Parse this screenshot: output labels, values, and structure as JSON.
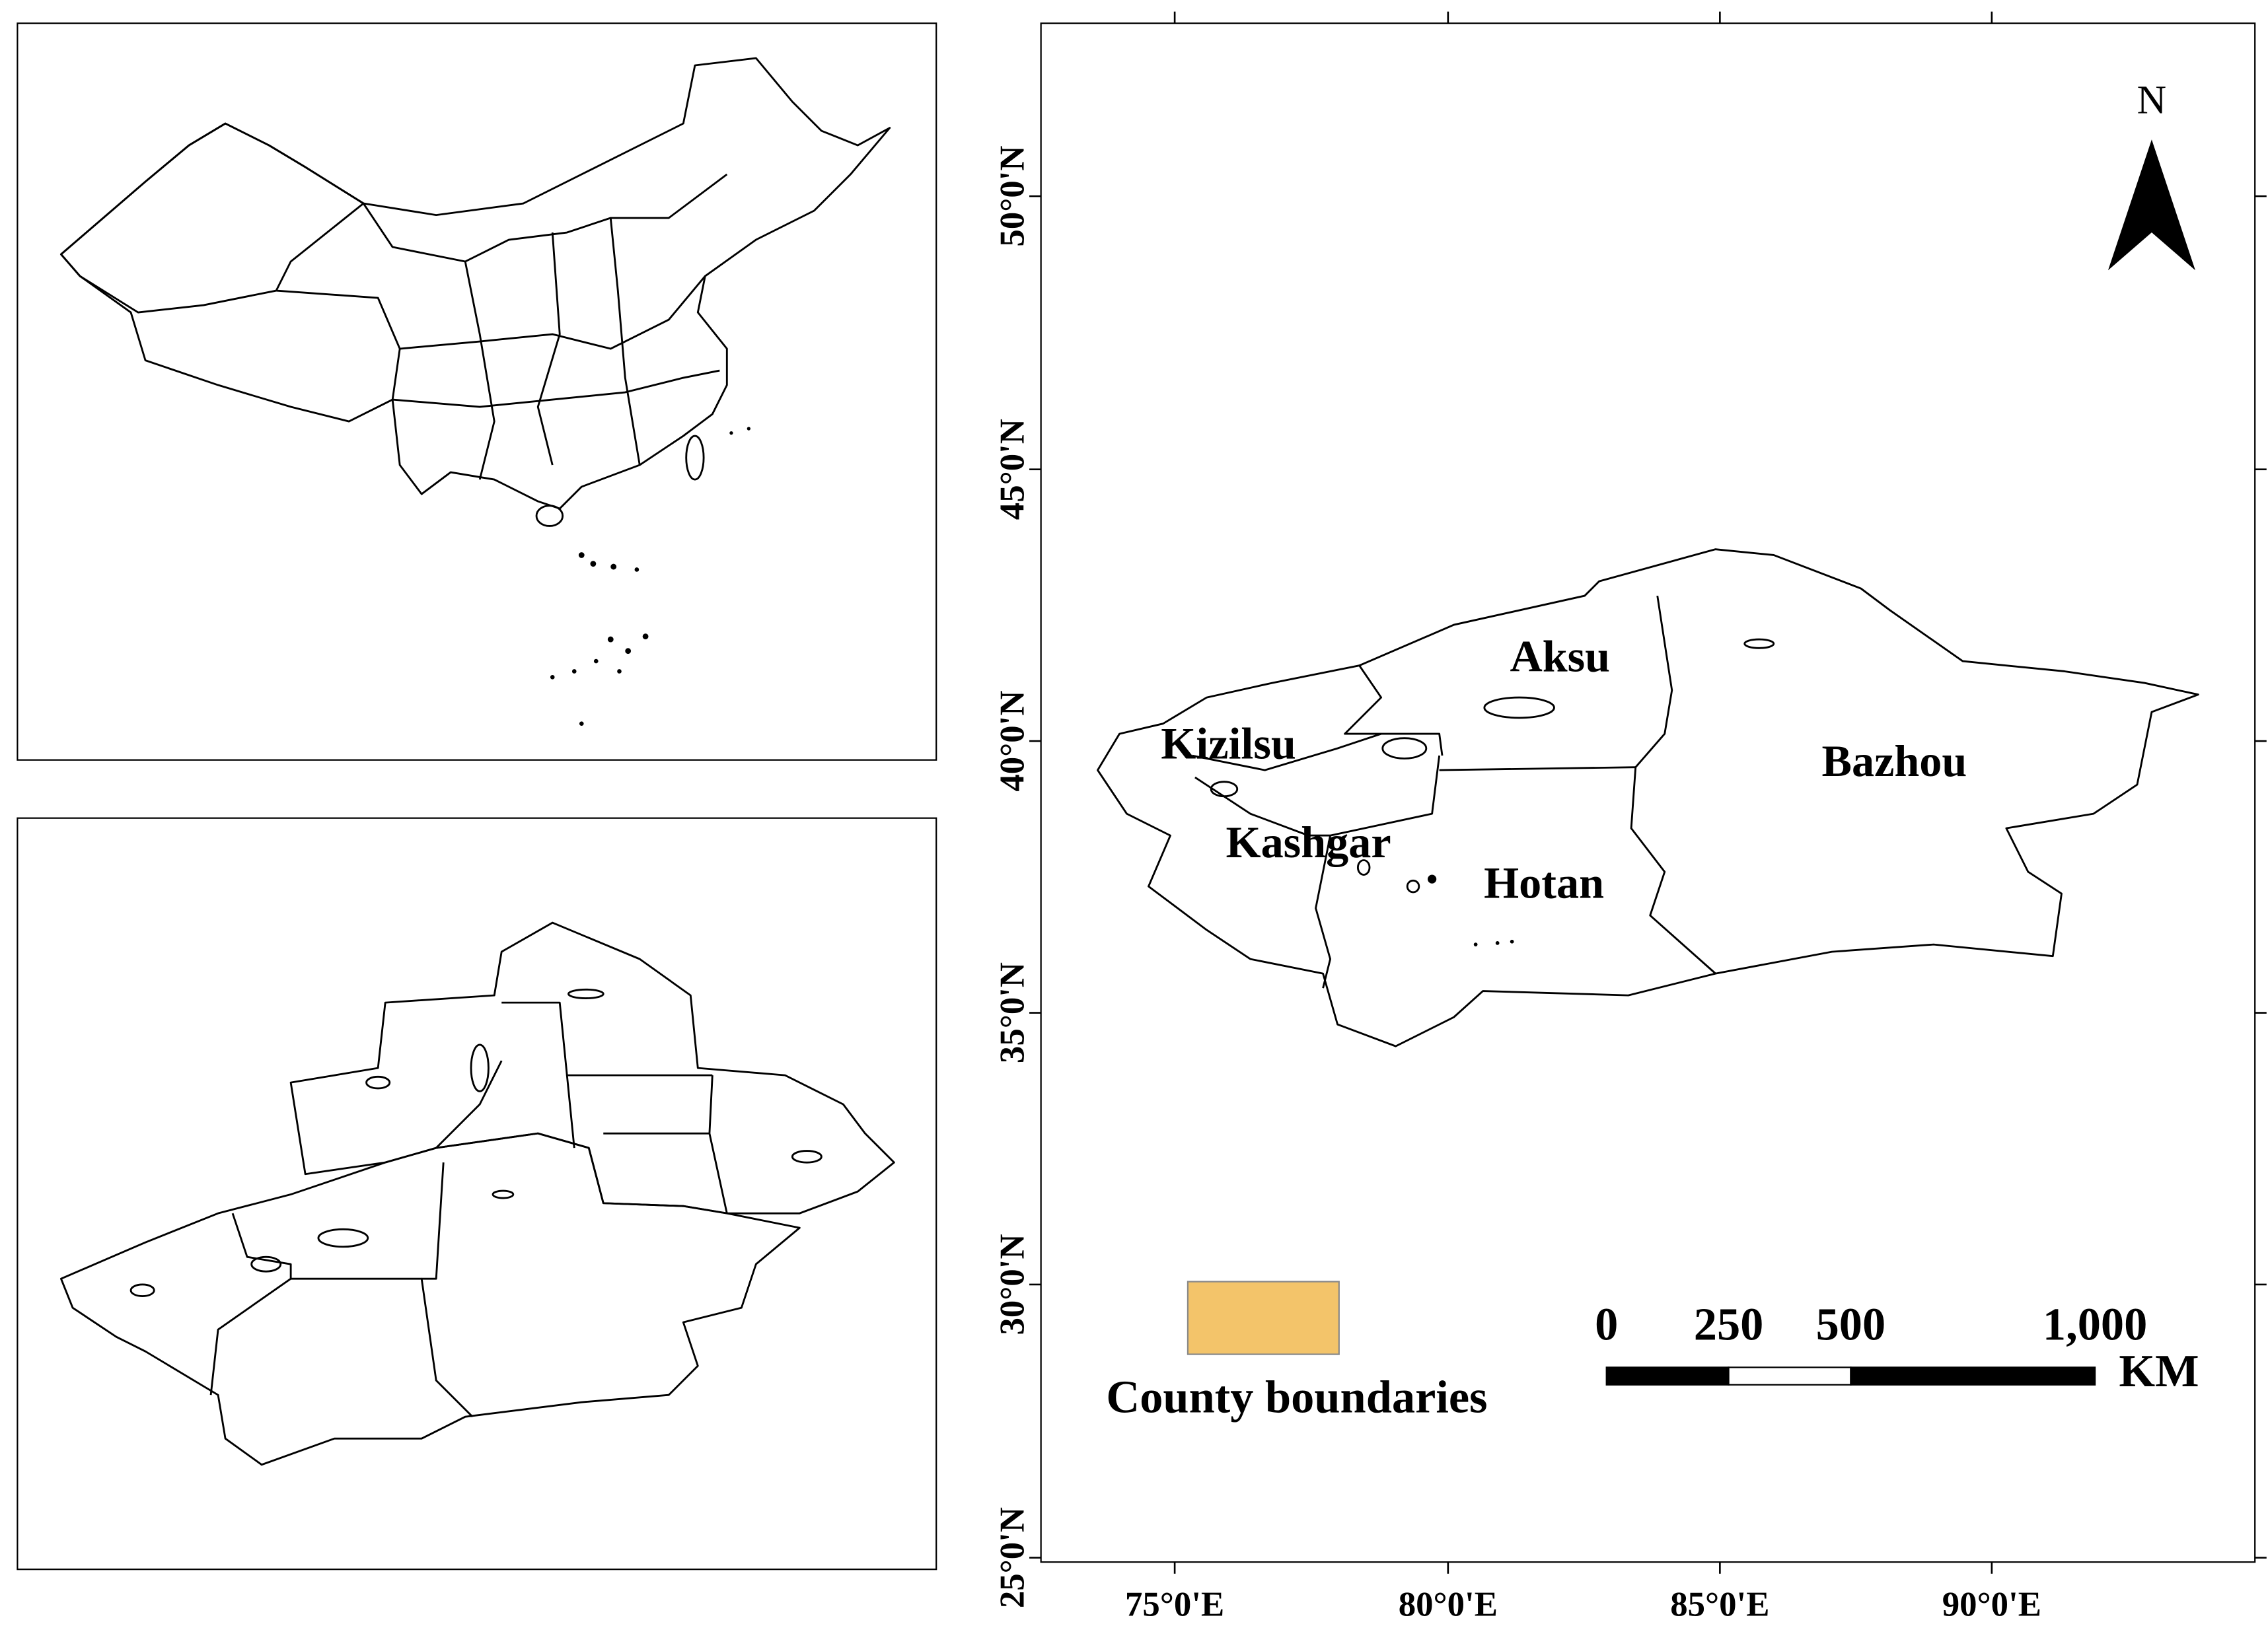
{
  "map": {
    "north_label": "N",
    "lat_labels": [
      "50°0'N",
      "45°0'N",
      "40°0'N",
      "35°0'N",
      "30°0'N",
      "25°0'N"
    ],
    "lon_labels": [
      "75°0'E",
      "80°0'E",
      "85°0'E",
      "90°0'E"
    ],
    "regions": [
      "Aksu",
      "Kizilsu",
      "Kashgar",
      "Hotan",
      "Bazhou"
    ],
    "legend": {
      "label": "County boundaries"
    },
    "scale_bar": {
      "labels": [
        "0",
        "250",
        "500",
        "1,000"
      ],
      "unit": "KM"
    }
  }
}
